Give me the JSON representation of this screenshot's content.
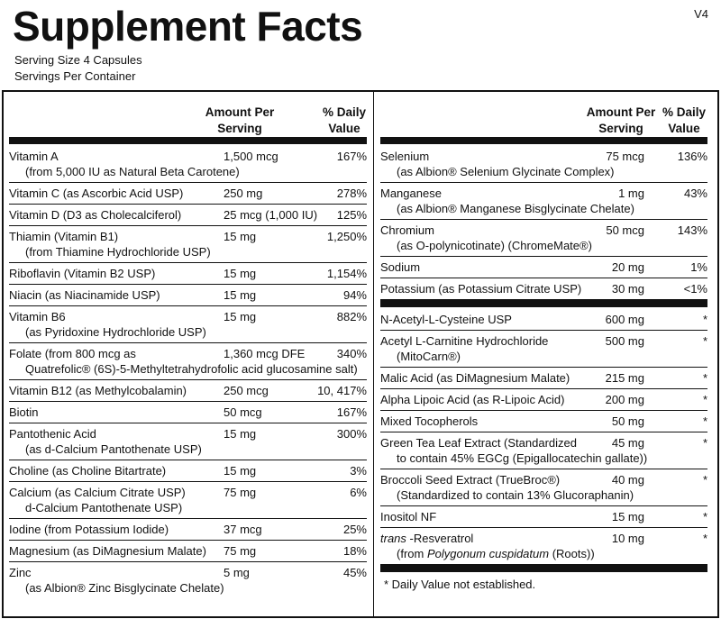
{
  "header": {
    "title": "Supplement Facts",
    "version": "V4",
    "serving_size": "Serving Size  4 Capsules",
    "servings_per_container": "Servings Per Container"
  },
  "left": {
    "headers": {
      "amount": [
        "Amount Per",
        "Serving"
      ],
      "dv": [
        "% Daily",
        "Value"
      ]
    },
    "rows": [
      {
        "name": "Vitamin A",
        "detail": "(from 5,000 IU as Natural Beta Carotene)",
        "amount": "1,500 mcg",
        "dv": "167%"
      },
      {
        "name": "Vitamin C (as Ascorbic Acid USP)",
        "amount": "250 mg",
        "dv": "278%"
      },
      {
        "name": "Vitamin D (D3 as Cholecalciferol)",
        "amount": "25 mcg (1,000 IU)",
        "dv": "125%"
      },
      {
        "name": "Thiamin (Vitamin B1)",
        "detail": "(from Thiamine Hydrochloride USP)",
        "amount": "15 mg",
        "dv": "1,250%"
      },
      {
        "name": "Riboflavin (Vitamin B2 USP)",
        "amount": "15 mg",
        "dv": "1,154%"
      },
      {
        "name": "Niacin (as Niacinamide USP)",
        "amount": "15 mg",
        "dv": "94%"
      },
      {
        "name": "Vitamin B6",
        "detail": "(as Pyridoxine Hydrochloride USP)",
        "amount": "15 mg",
        "dv": "882%"
      },
      {
        "name": "Folate (from 800 mcg as",
        "detail": "Quatrefolic® (6S)-5-Methyltetrahydrofolic acid glucosamine salt)",
        "amount": "1,360 mcg DFE",
        "dv": "340%"
      },
      {
        "name": "Vitamin B12 (as Methylcobalamin)",
        "amount": "250 mcg",
        "dv": "10, 417%"
      },
      {
        "name": "Biotin",
        "amount": "50 mcg",
        "dv": "167%"
      },
      {
        "name": "Pantothenic Acid",
        "detail": "(as d-Calcium Pantothenate USP)",
        "amount": "15 mg",
        "dv": "300%"
      },
      {
        "name": "Choline (as Choline Bitartrate)",
        "amount": "15 mg",
        "dv": "3%"
      },
      {
        "name": "Calcium (as Calcium Citrate USP)",
        "detail": "d-Calcium Pantothenate USP)",
        "amount": "75 mg",
        "dv": "6%"
      },
      {
        "name": "Iodine (from Potassium Iodide)",
        "amount": "37 mcg",
        "dv": "25%"
      },
      {
        "name": "Magnesium (as DiMagnesium Malate)",
        "amount": "75 mg",
        "dv": "18%"
      },
      {
        "name": "Zinc",
        "detail": "(as Albion® Zinc Bisglycinate Chelate)",
        "amount": "5 mg",
        "dv": "45%"
      }
    ]
  },
  "right": {
    "headers": {
      "amount": [
        "Amount Per",
        "Serving"
      ],
      "dv": [
        "% Daily",
        "Value"
      ]
    },
    "groups": [
      [
        {
          "name": "Selenium",
          "detail": "(as Albion® Selenium Glycinate Complex)",
          "amount": "75 mcg",
          "dv": "136%"
        },
        {
          "name": "Manganese",
          "detail": "(as Albion® Manganese Bisglycinate Chelate)",
          "amount": "1 mg",
          "dv": "43%"
        },
        {
          "name": "Chromium",
          "detail": "(as O-polynicotinate) (ChromeMate®)",
          "amount": "50 mcg",
          "dv": "143%"
        },
        {
          "name": "Sodium",
          "amount": "20 mg",
          "dv": "1%"
        },
        {
          "name": "Potassium (as Potassium Citrate USP)",
          "amount": "30 mg",
          "dv": "<1%"
        }
      ],
      [
        {
          "name": "N-Acetyl-L-Cysteine USP",
          "amount": "600 mg",
          "dv": "*"
        },
        {
          "name": "Acetyl L-Carnitine Hydrochloride",
          "detail": "(MitoCarn®)",
          "amount": "500 mg",
          "dv": "*"
        },
        {
          "name": "Malic Acid (as DiMagnesium Malate)",
          "amount": "215 mg",
          "dv": "*"
        },
        {
          "name": "Alpha Lipoic Acid (as R-Lipoic Acid)",
          "amount": "200 mg",
          "dv": "*"
        },
        {
          "name": "Mixed Tocopherols",
          "amount": "50 mg",
          "dv": "*"
        },
        {
          "name": "Green Tea Leaf Extract (Standardized",
          "detail": "to contain 45% EGCg (Epigallocatechin gallate))",
          "amount": "45 mg",
          "dv": "*"
        },
        {
          "name": "Broccoli Seed Extract (TrueBroc®)",
          "detail": "(Standardized to contain 13% Glucoraphanin)",
          "amount": "40 mg",
          "dv": "*"
        },
        {
          "name": "Inositol NF",
          "amount": "15 mg",
          "dv": "*"
        },
        {
          "name": [
            {
              "text": "trans",
              "italic": true
            },
            {
              "text": " -Resveratrol"
            }
          ],
          "detail": [
            {
              "text": "(from "
            },
            {
              "text": "Polygonum cuspidatum",
              "italic": true
            },
            {
              "text": " (Roots))"
            }
          ],
          "amount": "10 mg",
          "dv": "*"
        }
      ]
    ],
    "footnote": "*  Daily Value not established."
  }
}
